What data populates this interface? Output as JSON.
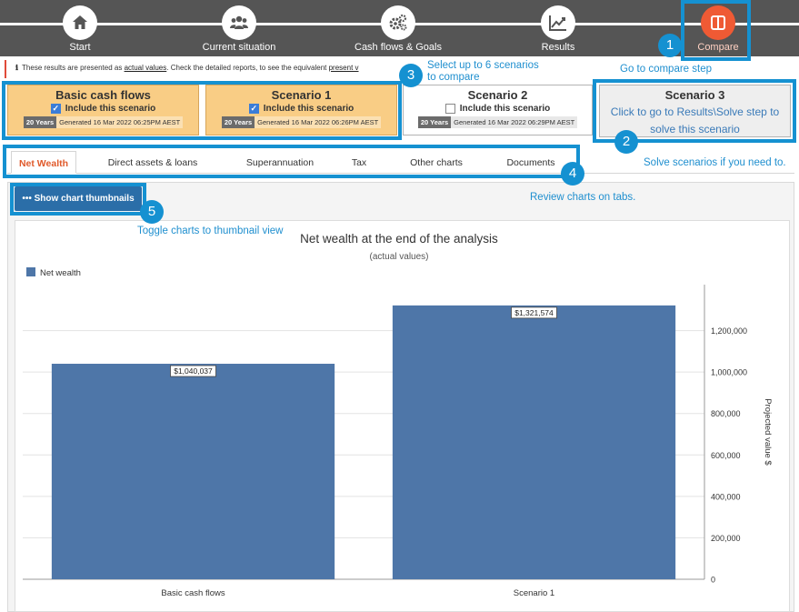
{
  "nav": {
    "steps": [
      {
        "label": "Start",
        "icon": "home-icon"
      },
      {
        "label": "Current situation",
        "icon": "people-icon"
      },
      {
        "label": "Cash flows & Goals",
        "icon": "gears-icon"
      },
      {
        "label": "Results",
        "icon": "chart-line-icon"
      },
      {
        "label": "Compare",
        "icon": "compare-icon"
      }
    ],
    "active_color": "#ef5a34",
    "bar_color": "#555555"
  },
  "info": {
    "icon": "ℹ",
    "text_before": "These results are presented as ",
    "em1": "actual values",
    "text_mid": ". Check the detailed reports, to see the equivalent ",
    "em2": "present v"
  },
  "scenarios": [
    {
      "title": "Basic cash flows",
      "include": "Include this scenario",
      "checked": true,
      "years": "20 Years",
      "generated": "Generated 16 Mar 2022 06:25PM AEST"
    },
    {
      "title": "Scenario 1",
      "include": "Include this scenario",
      "checked": true,
      "years": "20 Years",
      "generated": "Generated 16 Mar 2022 06:26PM AEST"
    },
    {
      "title": "Scenario 2",
      "include": "Include this scenario",
      "checked": false,
      "years": "20 Years",
      "generated": "Generated 16 Mar 2022 06:29PM AEST"
    },
    {
      "title": "Scenario 3",
      "link": "Click to go to Results\\Solve step to solve this scenario"
    }
  ],
  "tabs": [
    "Net Wealth",
    "Direct assets & loans",
    "Superannuation",
    "Tax",
    "Other charts",
    "Documents"
  ],
  "thumbnails_button": "••• Show chart thumbnails",
  "annotations": {
    "n1": "1",
    "n2": "2",
    "n3": "3",
    "n4": "4",
    "n5": "5",
    "note1": "Go to compare step",
    "note2": "Solve scenarios if you need to.",
    "note3a": "Select up to 6 scenarios",
    "note3b": "to compare",
    "note4": "Review charts on tabs.",
    "note5": "Toggle charts to thumbnail view",
    "color": "#1591d1"
  },
  "chart_data": {
    "type": "bar",
    "title": "Net wealth at the end of the analysis",
    "subtitle": "(actual values)",
    "legend": "Net wealth",
    "legend_position": "top-left",
    "categories": [
      "Basic cash flows",
      "Scenario 1"
    ],
    "values": [
      1040037,
      1321574
    ],
    "data_labels": [
      "$1,040,037",
      "$1,321,574"
    ],
    "ylabel": "Projected value $",
    "ylim": [
      0,
      1400000
    ],
    "yticks": [
      0,
      200000,
      400000,
      600000,
      800000,
      1000000,
      1200000
    ],
    "ytick_labels": [
      "0",
      "200,000",
      "400,000",
      "600,000",
      "800,000",
      "1,000,000",
      "1,200,000"
    ],
    "y_axis_side": "right",
    "grid": true,
    "bar_color": "#4e76a8"
  }
}
